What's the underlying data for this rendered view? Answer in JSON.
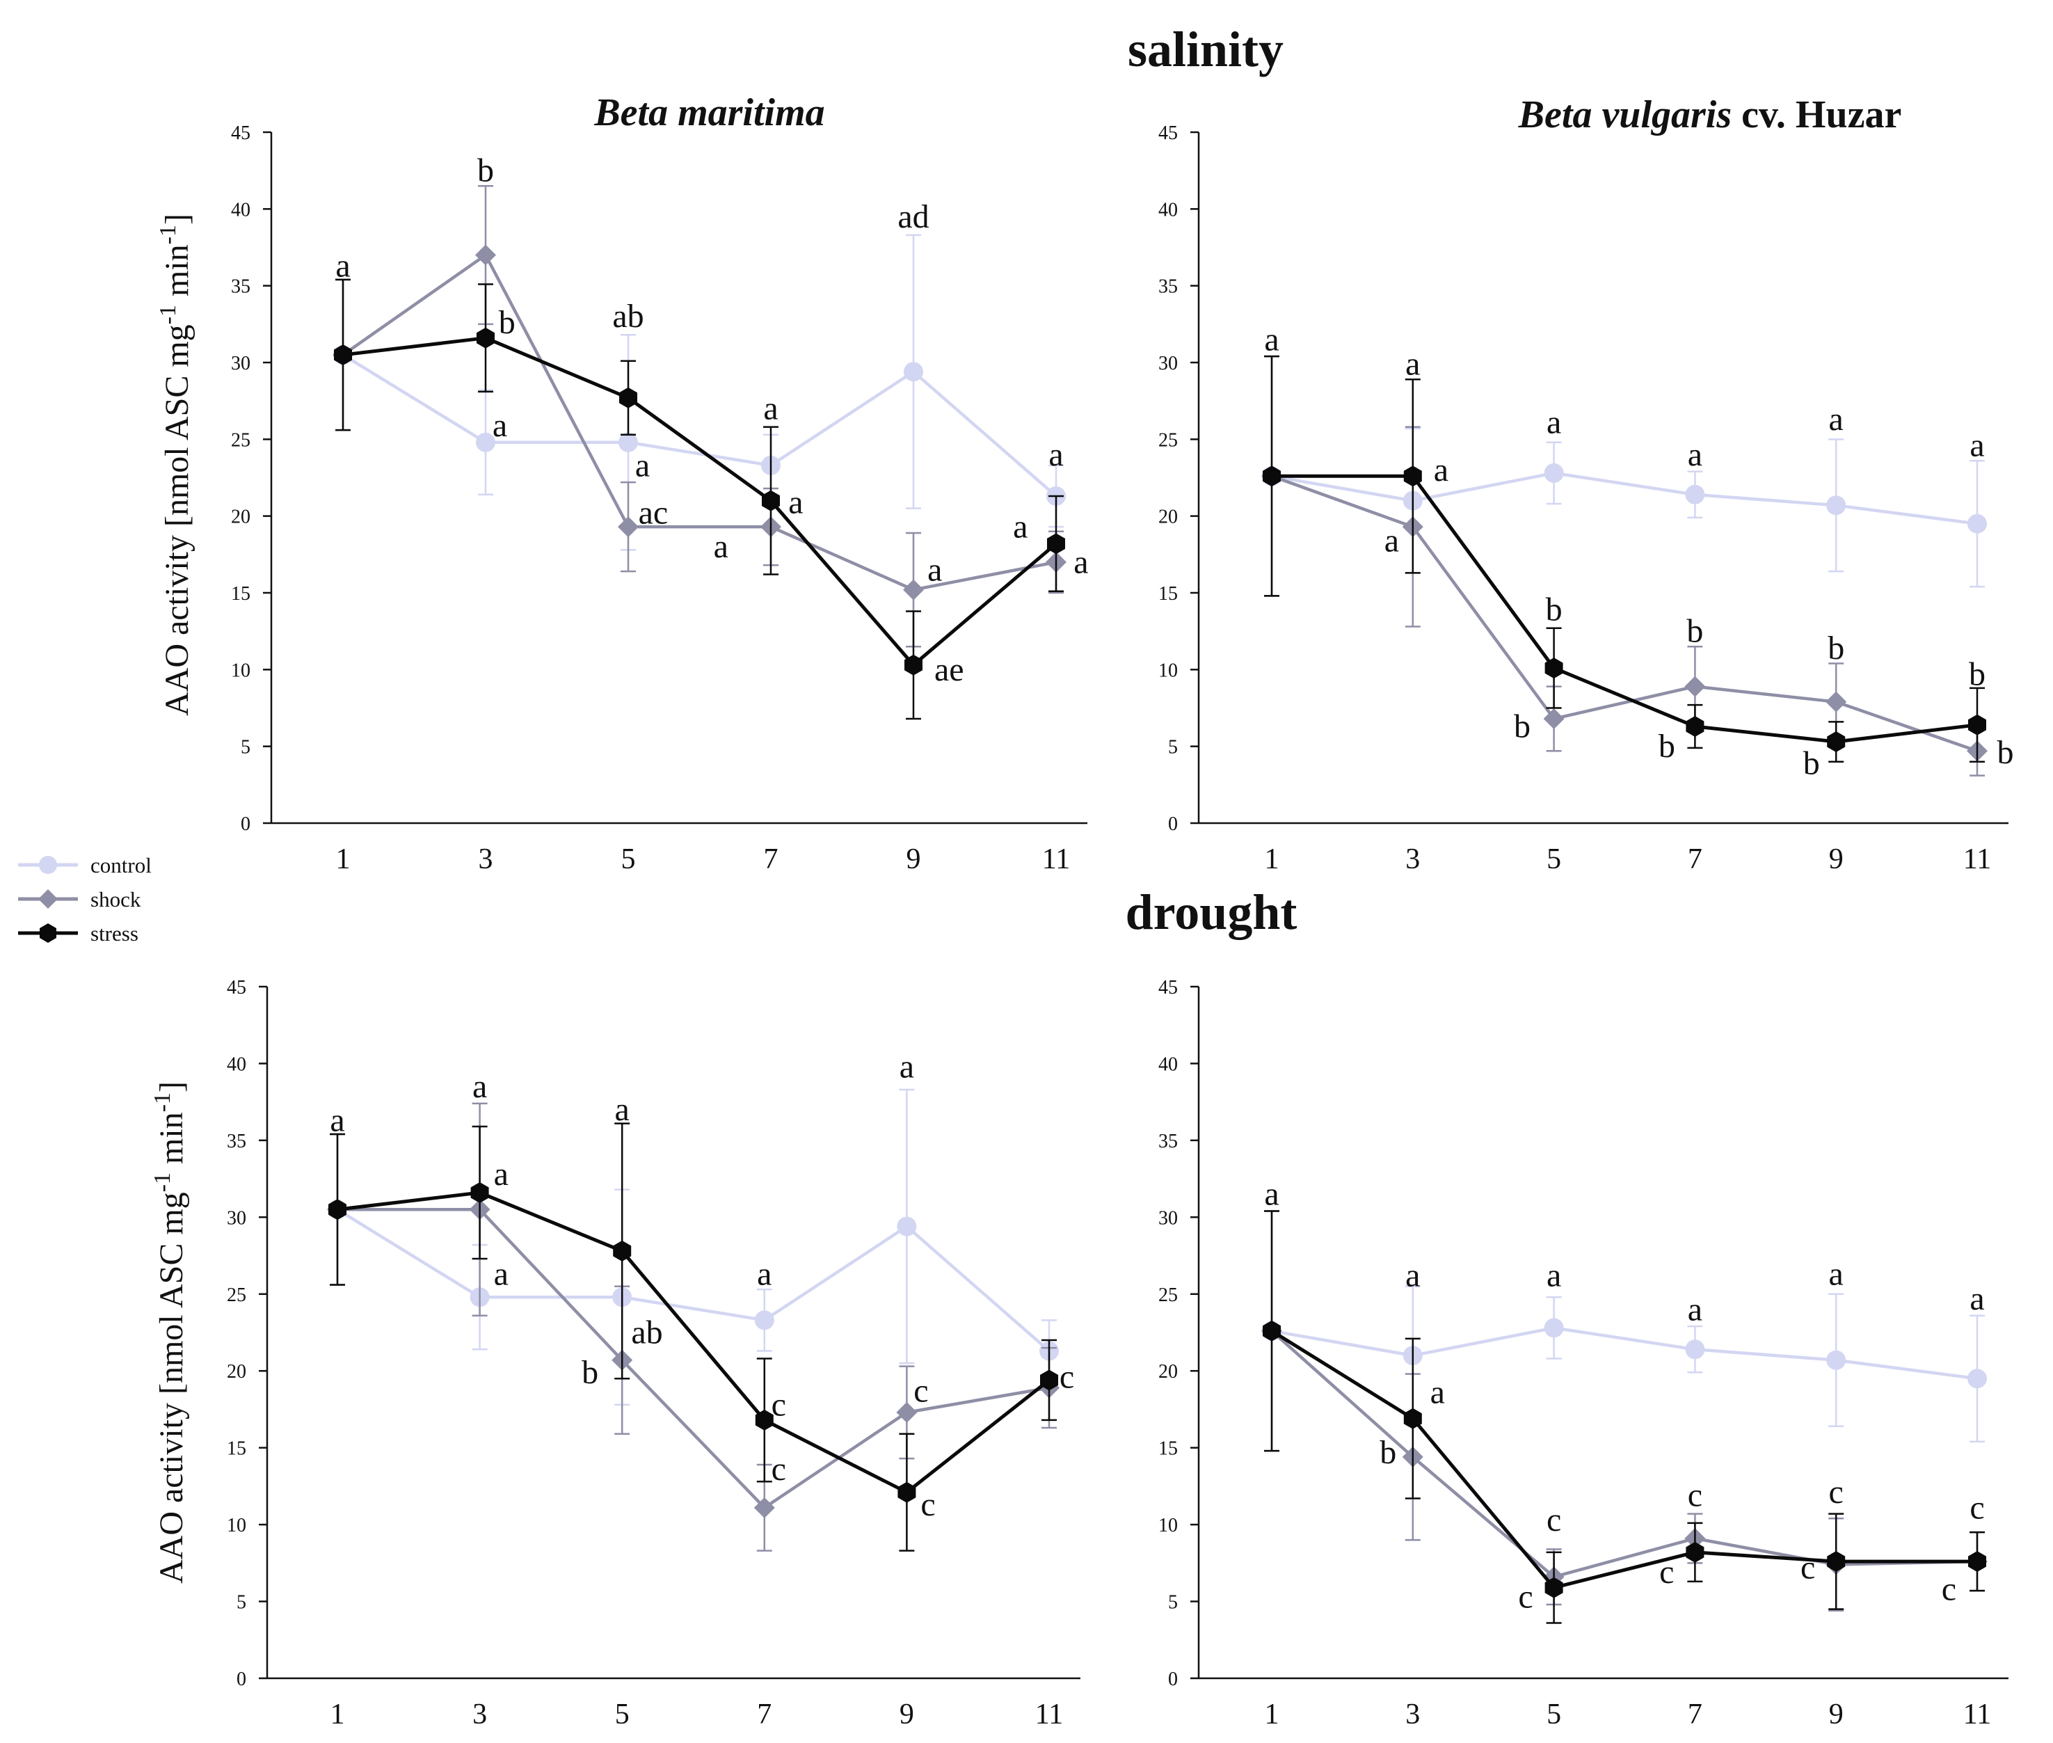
{
  "figure": {
    "salinity_title": "salinity",
    "drought_title": "drought",
    "species_left": "Beta maritima",
    "species_right_italic": "Beta vulgaris",
    "species_right_rest": " cv. Huzar",
    "ylabel_parts": [
      "AAO activity [nmol ASC mg",
      "-1",
      " min",
      "-1",
      "]"
    ],
    "legend": {
      "control": "control",
      "shock": "shock",
      "stress": "stress"
    },
    "colors": {
      "control": "#d3d6f2",
      "shock": "#8e8ea6",
      "stress": "#0a0a0a"
    }
  },
  "chart_data": [
    {
      "id": "salinity-beta-maritima",
      "type": "line",
      "title": "Beta maritima",
      "section": "salinity",
      "xlabel": "",
      "ylabel": "AAO activity [nmol ASC mg-1 min-1]",
      "x": [
        1,
        3,
        5,
        7,
        9,
        11
      ],
      "ylim": [
        0,
        45
      ],
      "yticks": [
        0,
        5,
        10,
        15,
        20,
        25,
        30,
        35,
        40,
        45
      ],
      "series": [
        {
          "name": "control",
          "values": [
            30.5,
            24.8,
            24.8,
            23.3,
            29.4,
            21.3
          ],
          "errors": [
            4.9,
            3.4,
            7.0,
            2.0,
            8.9,
            2.0
          ]
        },
        {
          "name": "shock",
          "values": [
            30.5,
            37.0,
            19.3,
            19.3,
            15.2,
            17.0
          ],
          "errors": [
            4.9,
            4.5,
            2.9,
            2.5,
            3.7,
            2.0
          ]
        },
        {
          "name": "stress",
          "values": [
            30.5,
            31.6,
            27.7,
            21.0,
            10.3,
            18.2
          ],
          "errors": [
            4.9,
            3.5,
            2.4,
            4.8,
            3.5,
            3.1
          ]
        }
      ],
      "annotations": [
        {
          "x": 1,
          "y": 35.6,
          "text": "a"
        },
        {
          "x": 3,
          "y": 41.8,
          "text": "b"
        },
        {
          "x": 3.3,
          "y": 31.9,
          "text": "b"
        },
        {
          "x": 3.2,
          "y": 25.2,
          "text": "a"
        },
        {
          "x": 5,
          "y": 32.3,
          "text": "ab"
        },
        {
          "x": 5.2,
          "y": 22.6,
          "text": "a"
        },
        {
          "x": 5.35,
          "y": 19.5,
          "text": "ac"
        },
        {
          "x": 7,
          "y": 26.3,
          "text": "a"
        },
        {
          "x": 7.35,
          "y": 20.2,
          "text": "a"
        },
        {
          "x": 6.3,
          "y": 17.3,
          "text": "a"
        },
        {
          "x": 9,
          "y": 38.8,
          "text": "ad"
        },
        {
          "x": 9.3,
          "y": 15.8,
          "text": "a"
        },
        {
          "x": 9.5,
          "y": 9.3,
          "text": "ae"
        },
        {
          "x": 11,
          "y": 23.3,
          "text": "a"
        },
        {
          "x": 10.5,
          "y": 18.6,
          "text": "a"
        },
        {
          "x": 11.35,
          "y": 16.3,
          "text": "a"
        }
      ]
    },
    {
      "id": "salinity-beta-vulgaris",
      "type": "line",
      "title": "Beta vulgaris cv. Huzar",
      "section": "salinity",
      "xlabel": "",
      "ylabel": "",
      "x": [
        1,
        3,
        5,
        7,
        9,
        11
      ],
      "ylim": [
        0,
        45
      ],
      "yticks": [
        0,
        5,
        10,
        15,
        20,
        25,
        30,
        35,
        40,
        45
      ],
      "series": [
        {
          "name": "control",
          "values": [
            22.6,
            21.0,
            22.8,
            21.4,
            20.7,
            19.5
          ],
          "errors": [
            7.8,
            4.7,
            2.0,
            1.5,
            4.3,
            4.1
          ]
        },
        {
          "name": "shock",
          "values": [
            22.6,
            19.3,
            6.8,
            8.9,
            7.9,
            4.7
          ],
          "errors": [
            7.8,
            6.5,
            2.1,
            2.6,
            2.5,
            1.6
          ]
        },
        {
          "name": "stress",
          "values": [
            22.6,
            22.6,
            10.1,
            6.3,
            5.3,
            6.4
          ],
          "errors": [
            7.8,
            6.3,
            2.6,
            1.4,
            1.3,
            2.4
          ]
        }
      ],
      "annotations": [
        {
          "x": 1,
          "y": 30.8,
          "text": "a"
        },
        {
          "x": 3,
          "y": 29.2,
          "text": "a"
        },
        {
          "x": 3.4,
          "y": 22.3,
          "text": "a"
        },
        {
          "x": 2.7,
          "y": 17.7,
          "text": "a"
        },
        {
          "x": 5,
          "y": 25.4,
          "text": "a"
        },
        {
          "x": 5,
          "y": 13.2,
          "text": "b"
        },
        {
          "x": 4.55,
          "y": 5.6,
          "text": "b"
        },
        {
          "x": 7,
          "y": 23.3,
          "text": "a"
        },
        {
          "x": 7,
          "y": 11.8,
          "text": "b"
        },
        {
          "x": 6.6,
          "y": 4.3,
          "text": "b"
        },
        {
          "x": 9,
          "y": 25.6,
          "text": "a"
        },
        {
          "x": 9,
          "y": 10.7,
          "text": "b"
        },
        {
          "x": 8.65,
          "y": 3.2,
          "text": "b"
        },
        {
          "x": 11,
          "y": 23.9,
          "text": "a"
        },
        {
          "x": 11,
          "y": 9.0,
          "text": "b"
        },
        {
          "x": 11.4,
          "y": 3.9,
          "text": "b"
        }
      ]
    },
    {
      "id": "drought-beta-maritima",
      "type": "line",
      "title": "",
      "section": "drought",
      "xlabel": "",
      "ylabel": "AAO activity [nmol ASC mg-1 min-1]",
      "x": [
        1,
        3,
        5,
        7,
        9,
        11
      ],
      "ylim": [
        0,
        45
      ],
      "yticks": [
        0,
        5,
        10,
        15,
        20,
        25,
        30,
        35,
        40,
        45
      ],
      "series": [
        {
          "name": "control",
          "values": [
            30.5,
            24.8,
            24.8,
            23.3,
            29.4,
            21.3
          ],
          "errors": [
            4.9,
            3.4,
            7.0,
            2.0,
            8.9,
            2.0
          ]
        },
        {
          "name": "shock",
          "values": [
            30.5,
            30.5,
            20.7,
            11.1,
            17.3,
            18.9
          ],
          "errors": [
            4.9,
            6.9,
            4.8,
            2.8,
            3.0,
            2.6
          ]
        },
        {
          "name": "stress",
          "values": [
            30.5,
            31.6,
            27.8,
            16.8,
            12.1,
            19.4
          ],
          "errors": [
            4.9,
            4.3,
            8.3,
            4.0,
            3.8,
            2.6
          ]
        }
      ],
      "annotations": [
        {
          "x": 1,
          "y": 35.6,
          "text": "a"
        },
        {
          "x": 3,
          "y": 37.8,
          "text": "a"
        },
        {
          "x": 3.3,
          "y": 32.1,
          "text": "a"
        },
        {
          "x": 3.3,
          "y": 25.6,
          "text": "a"
        },
        {
          "x": 5,
          "y": 36.3,
          "text": "a"
        },
        {
          "x": 5.35,
          "y": 21.8,
          "text": "ab"
        },
        {
          "x": 4.55,
          "y": 19.2,
          "text": "b"
        },
        {
          "x": 7,
          "y": 25.6,
          "text": "a"
        },
        {
          "x": 7.2,
          "y": 17.1,
          "text": "c"
        },
        {
          "x": 7.2,
          "y": 12.9,
          "text": "c"
        },
        {
          "x": 9,
          "y": 39.1,
          "text": "a"
        },
        {
          "x": 9.2,
          "y": 18.0,
          "text": "c"
        },
        {
          "x": 9.3,
          "y": 10.6,
          "text": "c"
        },
        {
          "x": 11.25,
          "y": 18.9,
          "text": "c"
        }
      ]
    },
    {
      "id": "drought-beta-vulgaris",
      "type": "line",
      "title": "",
      "section": "drought",
      "xlabel": "",
      "ylabel": "",
      "x": [
        1,
        3,
        5,
        7,
        9,
        11
      ],
      "ylim": [
        0,
        45
      ],
      "yticks": [
        0,
        5,
        10,
        15,
        20,
        25,
        30,
        35,
        40,
        45
      ],
      "series": [
        {
          "name": "control",
          "values": [
            22.6,
            21.0,
            22.8,
            21.4,
            20.7,
            19.5
          ],
          "errors": [
            7.8,
            4.5,
            2.0,
            1.5,
            4.3,
            4.1
          ]
        },
        {
          "name": "shock",
          "values": [
            22.6,
            14.4,
            6.6,
            9.1,
            7.4,
            7.6
          ],
          "errors": [
            7.8,
            5.4,
            1.8,
            1.6,
            3.0,
            1.9
          ]
        },
        {
          "name": "stress",
          "values": [
            22.6,
            16.9,
            5.9,
            8.2,
            7.6,
            7.6
          ],
          "errors": [
            7.8,
            5.2,
            2.3,
            1.9,
            3.1,
            1.9
          ]
        }
      ],
      "annotations": [
        {
          "x": 1,
          "y": 30.8,
          "text": "a"
        },
        {
          "x": 3,
          "y": 25.5,
          "text": "a"
        },
        {
          "x": 3.35,
          "y": 17.9,
          "text": "a"
        },
        {
          "x": 2.65,
          "y": 14.0,
          "text": "b"
        },
        {
          "x": 5,
          "y": 25.5,
          "text": "a"
        },
        {
          "x": 5,
          "y": 9.6,
          "text": "c"
        },
        {
          "x": 4.6,
          "y": 4.6,
          "text": "c"
        },
        {
          "x": 7,
          "y": 23.3,
          "text": "a"
        },
        {
          "x": 7,
          "y": 11.2,
          "text": "c"
        },
        {
          "x": 6.6,
          "y": 6.2,
          "text": "c"
        },
        {
          "x": 9,
          "y": 25.6,
          "text": "a"
        },
        {
          "x": 9,
          "y": 11.4,
          "text": "c"
        },
        {
          "x": 8.6,
          "y": 6.5,
          "text": "c"
        },
        {
          "x": 11,
          "y": 24.0,
          "text": "a"
        },
        {
          "x": 11,
          "y": 10.4,
          "text": "c"
        },
        {
          "x": 10.6,
          "y": 5.1,
          "text": "c"
        }
      ]
    }
  ]
}
